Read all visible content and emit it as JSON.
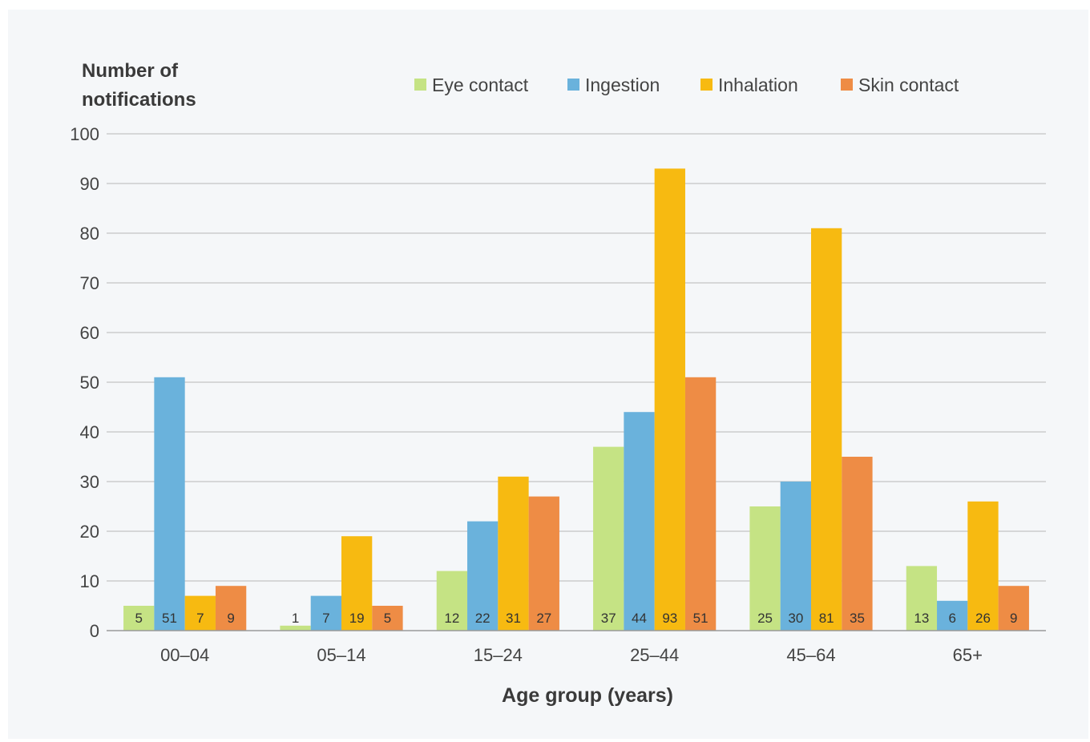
{
  "chart_data": {
    "type": "bar",
    "ylabel_lines": [
      "Number of",
      "notifications"
    ],
    "xlabel": "Age group (years)",
    "categories": [
      "00–04",
      "05–14",
      "15–24",
      "25–44",
      "45–64",
      "65+"
    ],
    "ylim": [
      0,
      100
    ],
    "yticks": [
      0,
      10,
      20,
      30,
      40,
      50,
      60,
      70,
      80,
      90,
      100
    ],
    "grid": true,
    "legend_position": "top",
    "series": [
      {
        "name": "Eye contact",
        "color": "#c5e384",
        "values": [
          5,
          1,
          12,
          37,
          25,
          13
        ]
      },
      {
        "name": "Ingestion",
        "color": "#6ab2dc",
        "values": [
          51,
          7,
          22,
          44,
          30,
          6
        ]
      },
      {
        "name": "Inhalation",
        "color": "#f7ba11",
        "values": [
          7,
          19,
          31,
          93,
          81,
          26
        ]
      },
      {
        "name": "Skin contact",
        "color": "#ee8c45",
        "values": [
          9,
          5,
          27,
          51,
          35,
          9
        ]
      }
    ]
  }
}
